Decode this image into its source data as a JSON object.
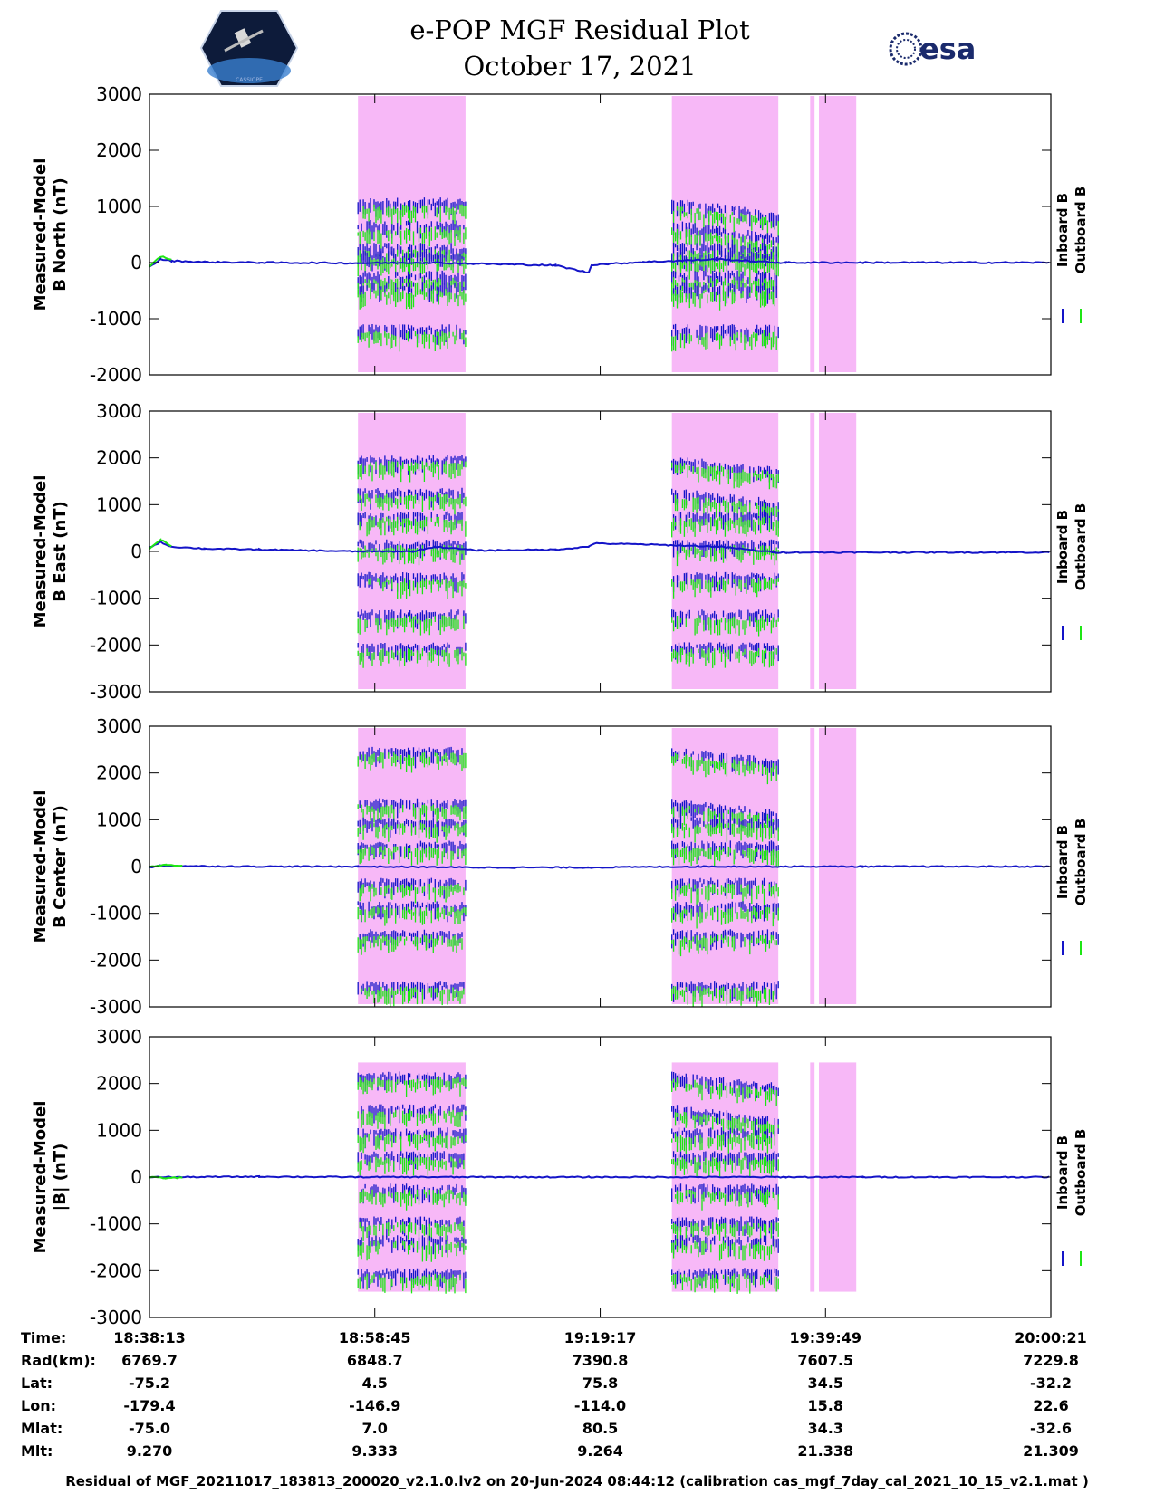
{
  "title_line1": "e-POP MGF Residual Plot",
  "title_line2": "October 17, 2021",
  "logo_right_text": "esa",
  "logo_left_text": "CASSIOPE",
  "colors": {
    "inboard": "#1414c8",
    "outboard": "#1ee614",
    "shade": "#f7b8f7",
    "axis": "#000000",
    "background": "#ffffff"
  },
  "legend": {
    "inboard": "Inboard B",
    "outboard": "Outboard B"
  },
  "chart_data": [
    {
      "type": "line",
      "ylabel": [
        "Measured-Model",
        "B North (nT)"
      ],
      "ylim": [
        -2000,
        3000
      ],
      "yticks": [
        "3000",
        "2000",
        "1000",
        "0",
        "-1000",
        "-2000"
      ],
      "xticks": [
        "18:38:13",
        "18:58:45",
        "19:19:17",
        "19:39:49",
        "20:00:21"
      ],
      "shaded_intervals_min": [
        [
          19.0,
          28.8
        ],
        [
          47.6,
          57.3
        ],
        [
          60.2,
          60.6
        ],
        [
          61.0,
          64.4
        ]
      ],
      "series": [
        {
          "name": "Inboard B",
          "note": "baseline ~0 nT; bursts in shaded intervals",
          "x_min": [
            0,
            1,
            2,
            5,
            10,
            19,
            25,
            37,
            40,
            40.3,
            45,
            52,
            57,
            58,
            65,
            82
          ],
          "y": [
            -80,
            60,
            30,
            10,
            0,
            -10,
            0,
            -50,
            -180,
            -40,
            10,
            60,
            0,
            0,
            0,
            0
          ]
        },
        {
          "name": "Outboard B",
          "note": "active during shaded intervals",
          "x_min": [
            0,
            1,
            2
          ],
          "y": [
            -60,
            110,
            50
          ]
        }
      ]
    },
    {
      "type": "line",
      "ylabel": [
        "Measured-Model",
        "B East (nT)"
      ],
      "ylim": [
        -3000,
        3000
      ],
      "yticks": [
        "3000",
        "2000",
        "1000",
        "0",
        "-1000",
        "-2000",
        "-3000"
      ],
      "xticks": [
        "18:38:13",
        "18:58:45",
        "19:19:17",
        "19:39:49",
        "20:00:21"
      ],
      "shaded_intervals_min": [
        [
          19.0,
          28.8
        ],
        [
          47.6,
          57.3
        ],
        [
          60.2,
          60.6
        ],
        [
          61.0,
          64.4
        ]
      ],
      "series": [
        {
          "name": "Inboard B",
          "x_min": [
            0,
            1,
            2,
            5,
            10,
            19,
            24,
            26,
            30,
            37,
            40,
            40.5,
            45,
            52,
            57,
            58,
            65,
            82
          ],
          "y": [
            80,
            200,
            100,
            60,
            40,
            0,
            0,
            100,
            20,
            40,
            100,
            170,
            150,
            100,
            -20,
            -20,
            -20,
            -20
          ]
        },
        {
          "name": "Outboard B",
          "x_min": [
            0,
            1,
            2
          ],
          "y": [
            60,
            250,
            120
          ]
        }
      ]
    },
    {
      "type": "line",
      "ylabel": [
        "Measured-Model",
        "B Center (nT)"
      ],
      "ylim": [
        -3000,
        3000
      ],
      "yticks": [
        "3000",
        "2000",
        "1000",
        "0",
        "-1000",
        "-2000",
        "-3000"
      ],
      "xticks": [
        "18:38:13",
        "18:58:45",
        "19:19:17",
        "19:39:49",
        "20:00:21"
      ],
      "shaded_intervals_min": [
        [
          19.0,
          28.8
        ],
        [
          47.6,
          57.3
        ],
        [
          60.2,
          60.6
        ],
        [
          61.0,
          64.4
        ]
      ],
      "series": [
        {
          "name": "Inboard B",
          "x_min": [
            0,
            1,
            3,
            10,
            19,
            30,
            40,
            50,
            57,
            58,
            65,
            82
          ],
          "y": [
            -20,
            20,
            10,
            0,
            0,
            -20,
            -20,
            0,
            0,
            0,
            0,
            0
          ]
        },
        {
          "name": "Outboard B",
          "x_min": [
            0,
            1.5,
            3
          ],
          "y": [
            -10,
            40,
            10
          ]
        }
      ]
    },
    {
      "type": "line",
      "ylabel": [
        "Measured-Model",
        "|B| (nT)"
      ],
      "ylim": [
        -3000,
        3000
      ],
      "yticks": [
        "3000",
        "2000",
        "1000",
        "0",
        "-1000",
        "-2000",
        "-3000"
      ],
      "xticks": [
        "18:38:13",
        "18:58:45",
        "19:19:17",
        "19:39:49",
        "20:00:21"
      ],
      "shaded_intervals_min": [
        [
          19.0,
          28.8
        ],
        [
          47.6,
          57.3
        ],
        [
          60.2,
          60.6
        ],
        [
          61.0,
          64.4
        ]
      ],
      "series": [
        {
          "name": "Inboard B",
          "x_min": [
            0,
            2.5,
            10,
            19,
            30,
            40,
            50,
            57,
            58,
            65,
            82
          ],
          "y": [
            0,
            0,
            10,
            0,
            0,
            0,
            0,
            0,
            0,
            0,
            0
          ]
        },
        {
          "name": "Outboard B",
          "x_min": [
            0,
            1.5,
            3
          ],
          "y": [
            0,
            -20,
            -10
          ]
        }
      ]
    }
  ],
  "table": {
    "labels": [
      "Time:",
      "Rad(km):",
      "Lat:",
      "Lon:",
      "Mlat:",
      "Mlt:"
    ],
    "columns": [
      [
        "18:38:13",
        "6769.7",
        "-75.2",
        "-179.4",
        "-75.0",
        "9.270"
      ],
      [
        "18:58:45",
        "6848.7",
        "4.5",
        "-146.9",
        "7.0",
        "9.333"
      ],
      [
        "19:19:17",
        "7390.8",
        "75.8",
        "-114.0",
        "80.5",
        "9.264"
      ],
      [
        "19:39:49",
        "7607.5",
        "34.5",
        "15.8",
        "34.3",
        "21.338"
      ],
      [
        "20:00:21",
        "7229.8",
        "-32.2",
        "22.6",
        "-32.6",
        "21.309"
      ]
    ]
  },
  "footer": "Residual of MGF_20211017_183813_200020_v2.1.0.lv2 on 20-Jun-2024 08:44:12 (calibration cas_mgf_7day_cal_2021_10_15_v2.1.mat )"
}
